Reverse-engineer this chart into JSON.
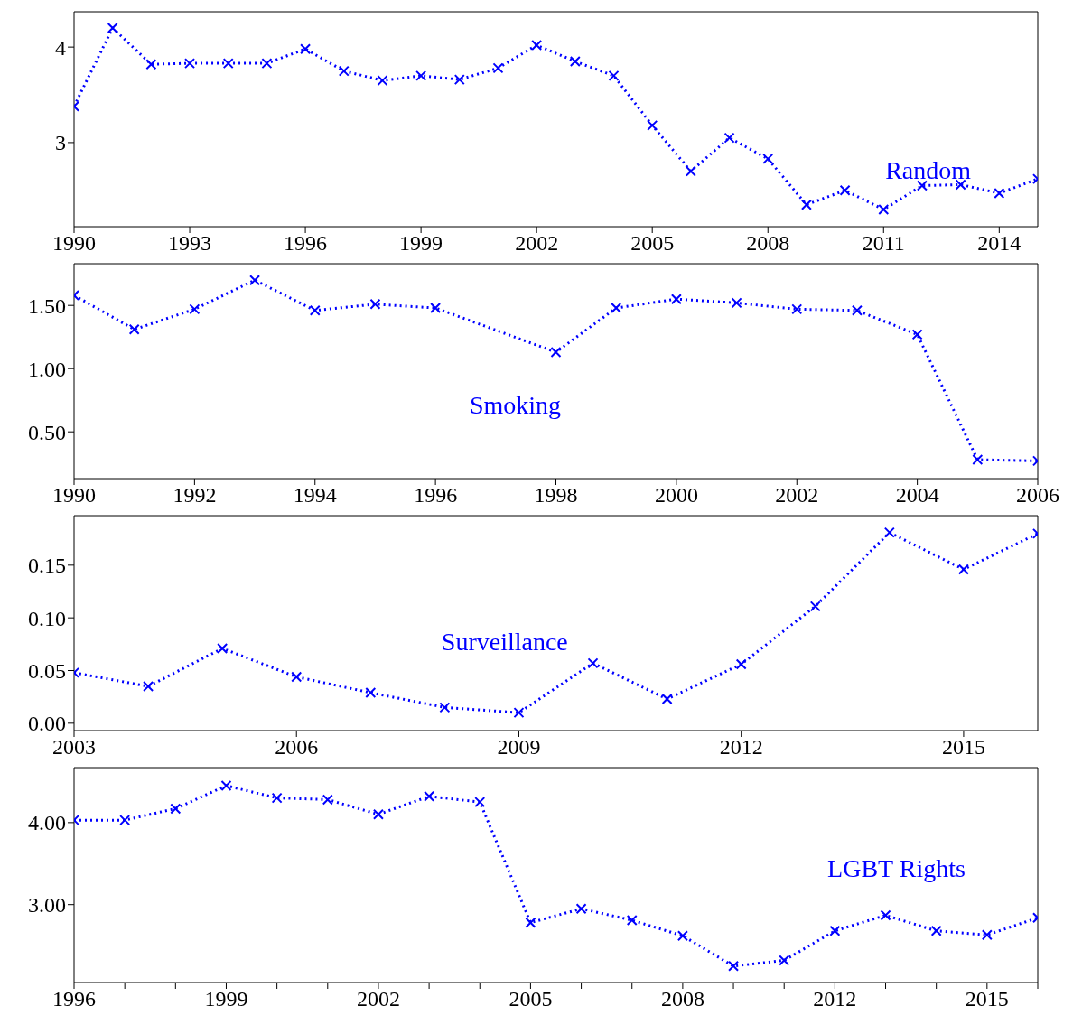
{
  "chart_data": [
    {
      "type": "line",
      "x": [
        1990,
        1991,
        1992,
        1993,
        1994,
        1995,
        1996,
        1997,
        1998,
        1999,
        2000,
        2001,
        2002,
        2003,
        2004,
        2005,
        2006,
        2007,
        2008,
        2009,
        2010,
        2011,
        2012,
        2013,
        2014,
        2015
      ],
      "xlim": [
        1990,
        2015
      ],
      "xticks": [
        1990,
        1993,
        1996,
        1999,
        2002,
        2005,
        2008,
        2011,
        2014
      ],
      "ylim": [
        2.12,
        4.37
      ],
      "yticks": [
        3,
        4
      ],
      "marker": "cross",
      "line_style": "dotted",
      "series": [
        {
          "name": "Random",
          "color": "#0000ff",
          "values": [
            3.38,
            4.2,
            3.82,
            3.83,
            3.83,
            3.83,
            3.98,
            3.75,
            3.65,
            3.7,
            3.66,
            3.78,
            4.02,
            3.85,
            3.7,
            3.18,
            2.7,
            3.05,
            2.83,
            2.35,
            2.5,
            2.3,
            2.55,
            2.56,
            2.47,
            2.62
          ]
        }
      ]
    },
    {
      "type": "line",
      "x": [
        1990,
        1991,
        1992,
        1993,
        1994,
        1995,
        1996,
        1998,
        1999,
        2000,
        2001,
        2002,
        2003,
        2004,
        2005,
        2006
      ],
      "xlim": [
        1990,
        2006
      ],
      "xticks": [
        1990,
        1992,
        1994,
        1996,
        1998,
        2000,
        2002,
        2004,
        2006
      ],
      "ylim": [
        0.13,
        1.83
      ],
      "yticks": [
        {
          "value": 0.5,
          "label": "0.50"
        },
        {
          "value": 1,
          "label": "1.00"
        },
        {
          "value": 1.5,
          "label": "1.50"
        }
      ],
      "marker": "cross",
      "line_style": "dotted",
      "series": [
        {
          "name": "Smoking",
          "color": "#0000ff",
          "values": [
            1.58,
            1.31,
            1.47,
            1.7,
            1.46,
            1.51,
            1.48,
            1.13,
            1.48,
            1.55,
            1.52,
            1.47,
            1.46,
            1.27,
            0.28,
            0.27
          ]
        }
      ]
    },
    {
      "type": "line",
      "x": [
        2003,
        2004,
        2005,
        2006,
        2007,
        2008,
        2009,
        2010,
        2011,
        2012,
        2013,
        2014,
        2015,
        2016
      ],
      "xlim": [
        2003,
        2016
      ],
      "xticks": [
        2003,
        2006,
        2009,
        2012,
        2015
      ],
      "ylim": [
        -0.007,
        0.197
      ],
      "yticks": [
        {
          "value": 0,
          "label": "0.00"
        },
        0.05,
        {
          "value": 0.1,
          "label": "0.10"
        },
        0.15
      ],
      "marker": "cross",
      "line_style": "dotted",
      "series": [
        {
          "name": "Surveillance",
          "color": "#0000ff",
          "values": [
            0.048,
            0.035,
            0.071,
            0.044,
            0.029,
            0.015,
            0.01,
            0.057,
            0.023,
            0.056,
            0.111,
            0.181,
            0.146,
            0.18
          ]
        }
      ]
    },
    {
      "type": "line",
      "categories": [
        "1996",
        null,
        null,
        "1999",
        null,
        null,
        "2002",
        null,
        null,
        "2005",
        null,
        null,
        "2008",
        null,
        null,
        "2012",
        null,
        null,
        "2015",
        null
      ],
      "ylim": [
        2.05,
        4.67
      ],
      "yticks": [
        {
          "value": 3,
          "label": "3.00"
        },
        {
          "value": 4,
          "label": "4.00"
        }
      ],
      "marker": "cross",
      "line_style": "dotted",
      "series": [
        {
          "name": "LGBT Rights",
          "color": "#0000ff",
          "values": [
            4.03,
            4.03,
            4.17,
            4.45,
            4.3,
            4.28,
            4.1,
            4.32,
            4.25,
            2.78,
            2.95,
            2.81,
            2.62,
            2.25,
            2.32,
            2.68,
            2.87,
            2.68,
            2.63,
            2.84
          ]
        }
      ]
    }
  ]
}
